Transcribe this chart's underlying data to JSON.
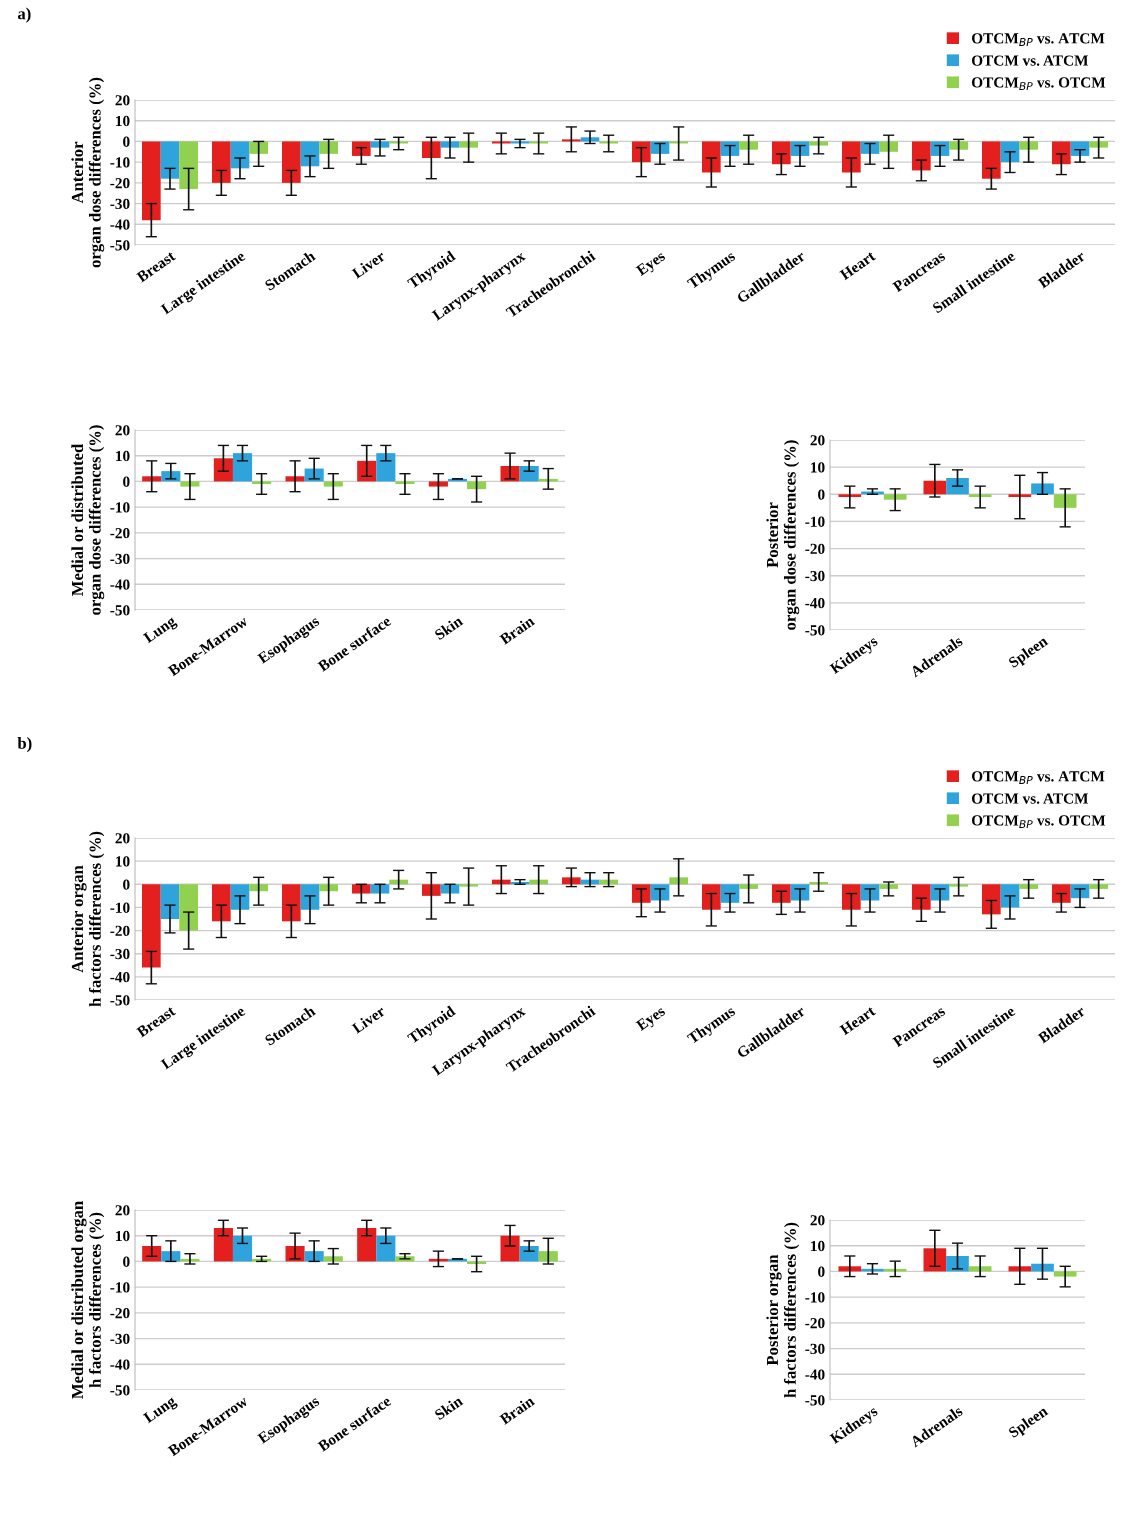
{
  "chart_data": [
    {
      "type": "bar",
      "title": "a)",
      "ylabel": "Anterior\norgan dose differences (%)",
      "categories": [
        "Breast",
        "Large intestine",
        "Stomach",
        "Liver",
        "Thyroid",
        "Larynx-pharynx",
        "Tracheobronchi",
        "Eyes",
        "Thymus",
        "Gallbladder",
        "Heart",
        "Pancreas",
        "Small intestine",
        "Bladder"
      ],
      "series": [
        {
          "name": "OTCM$_{BP}$ vs. ATCM",
          "color": "#e4201f",
          "values": [
            -38,
            -20,
            -20,
            -7,
            -8,
            -1,
            1,
            -10,
            -15,
            -11,
            -15,
            -14,
            -18,
            -11
          ],
          "errors": [
            8,
            6,
            6,
            4,
            10,
            5,
            6,
            7,
            7,
            5,
            7,
            5,
            5,
            5
          ]
        },
        {
          "name": "OTCM vs. ATCM",
          "color": "#2ea3dc",
          "values": [
            -18,
            -13,
            -12,
            -3,
            -3,
            -1,
            2,
            -6,
            -7,
            -7,
            -6,
            -7,
            -10,
            -7
          ],
          "errors": [
            5,
            5,
            5,
            4,
            5,
            2,
            3,
            5,
            5,
            5,
            5,
            5,
            5,
            3
          ]
        },
        {
          "name": "OTCM$_{BP}$ vs. OTCM",
          "color": "#92d050",
          "values": [
            -23,
            -6,
            -6,
            -1,
            -3,
            -1,
            -1,
            -1,
            -4,
            -2,
            -5,
            -4,
            -4,
            -3
          ],
          "errors": [
            10,
            6,
            7,
            3,
            7,
            5,
            4,
            8,
            7,
            4,
            8,
            5,
            6,
            5
          ]
        }
      ],
      "ylim": [
        -50,
        20
      ],
      "yticks": [
        -50,
        -40,
        -30,
        -20,
        -10,
        0,
        10,
        20
      ],
      "grid": "y",
      "legend": "top right"
    },
    {
      "type": "bar",
      "ylabel": "Medial or distributed\norgan dose differences (%)",
      "categories": [
        "Lung",
        "Bone-Marrow",
        "Esophagus",
        "Bone surface",
        "Skin",
        "Brain"
      ],
      "series": [
        {
          "color": "#e4201f",
          "values": [
            2,
            9,
            2,
            8,
            -2,
            6
          ],
          "errors": [
            6,
            5,
            6,
            6,
            5,
            5
          ]
        },
        {
          "color": "#2ea3dc",
          "values": [
            4,
            11,
            5,
            11,
            1,
            6
          ],
          "errors": [
            3,
            3,
            4,
            3,
            null,
            2
          ]
        },
        {
          "color": "#92d050",
          "values": [
            -2,
            -1,
            -2,
            -1,
            -3,
            1
          ],
          "errors": [
            5,
            4,
            5,
            4,
            5,
            4
          ]
        }
      ],
      "ylim": [
        -50,
        20
      ],
      "yticks": [
        -50,
        -40,
        -30,
        -20,
        -10,
        0,
        10,
        20
      ],
      "grid": "y"
    },
    {
      "type": "bar",
      "ylabel": "Posterior\norgan dose differences (%)",
      "categories": [
        "Kidneys",
        "Adrenals",
        "Spleen"
      ],
      "series": [
        {
          "color": "#e4201f",
          "values": [
            -1,
            5,
            -1
          ],
          "errors": [
            4,
            6,
            8
          ]
        },
        {
          "color": "#2ea3dc",
          "values": [
            1,
            6,
            4
          ],
          "errors": [
            1,
            3,
            4
          ]
        },
        {
          "color": "#92d050",
          "values": [
            -2,
            -1,
            -5
          ],
          "errors": [
            4,
            4,
            7
          ]
        }
      ],
      "ylim": [
        -50,
        20
      ],
      "yticks": [
        -50,
        -40,
        -30,
        -20,
        -10,
        0,
        10,
        20
      ],
      "grid": "y"
    },
    {
      "type": "bar",
      "title": "b)",
      "ylabel": "Anterior organ\nh factors differences (%)",
      "categories": [
        "Breast",
        "Large intestine",
        "Stomach",
        "Liver",
        "Thyroid",
        "Larynx-pharynx",
        "Tracheobronchi",
        "Eyes",
        "Thymus",
        "Gallbladder",
        "Heart",
        "Pancreas",
        "Small intestine",
        "Bladder"
      ],
      "series": [
        {
          "name": "OTCM$_{BP}$ vs. ATCM",
          "color": "#e4201f",
          "values": [
            -36,
            -16,
            -16,
            -4,
            -5,
            2,
            3,
            -8,
            -11,
            -8,
            -11,
            -11,
            -13,
            -8
          ],
          "errors": [
            7,
            7,
            7,
            4,
            10,
            6,
            4,
            6,
            7,
            5,
            7,
            5,
            6,
            4
          ]
        },
        {
          "name": "OTCM vs. ATCM",
          "color": "#2ea3dc",
          "values": [
            -15,
            -11,
            -11,
            -4,
            -4,
            1,
            2,
            -7,
            -8,
            -7,
            -7,
            -7,
            -10,
            -6
          ],
          "errors": [
            6,
            6,
            6,
            4,
            4,
            1,
            3,
            5,
            4,
            5,
            5,
            5,
            5,
            4
          ]
        },
        {
          "name": "OTCM$_{BP}$ vs. OTCM",
          "color": "#92d050",
          "values": [
            -20,
            -3,
            -3,
            2,
            -1,
            2,
            2,
            3,
            -2,
            1,
            -2,
            -1,
            -2,
            -2
          ],
          "errors": [
            8,
            6,
            6,
            4,
            8,
            6,
            3,
            8,
            6,
            4,
            3,
            4,
            4,
            4
          ]
        }
      ],
      "ylim": [
        -50,
        20
      ],
      "yticks": [
        -50,
        -40,
        -30,
        -20,
        -10,
        0,
        10,
        20
      ],
      "grid": "y",
      "legend": "top right"
    },
    {
      "type": "bar",
      "ylabel": "Medial or distributed organ\nh factors differences (%)",
      "categories": [
        "Lung",
        "Bone-Marrow",
        "Esophagus",
        "Bone surface",
        "Skin",
        "Brain"
      ],
      "series": [
        {
          "color": "#e4201f",
          "values": [
            6,
            13,
            6,
            13,
            1,
            10
          ],
          "errors": [
            4,
            3,
            5,
            3,
            3,
            4
          ]
        },
        {
          "color": "#2ea3dc",
          "values": [
            4,
            10,
            4,
            10,
            1,
            6
          ],
          "errors": [
            4,
            3,
            4,
            3,
            null,
            2
          ]
        },
        {
          "color": "#92d050",
          "values": [
            1,
            1,
            2,
            2,
            -1,
            4
          ],
          "errors": [
            2,
            1,
            3,
            1,
            3,
            5
          ]
        }
      ],
      "ylim": [
        -50,
        20
      ],
      "yticks": [
        -50,
        -40,
        -30,
        -20,
        -10,
        0,
        10,
        20
      ],
      "grid": "y"
    },
    {
      "type": "bar",
      "ylabel": "Posterior organ\nh factors differences (%)",
      "categories": [
        "Kidneys",
        "Adrenals",
        "Spleen"
      ],
      "series": [
        {
          "color": "#e4201f",
          "values": [
            2,
            9,
            2
          ],
          "errors": [
            4,
            7,
            7
          ]
        },
        {
          "color": "#2ea3dc",
          "values": [
            1,
            6,
            3
          ],
          "errors": [
            2,
            5,
            6
          ]
        },
        {
          "color": "#92d050",
          "values": [
            1,
            2,
            -2
          ],
          "errors": [
            3,
            4,
            4
          ]
        }
      ],
      "ylim": [
        -50,
        20
      ],
      "yticks": [
        -50,
        -40,
        -30,
        -20,
        -10,
        0,
        10,
        20
      ],
      "grid": "y"
    }
  ]
}
